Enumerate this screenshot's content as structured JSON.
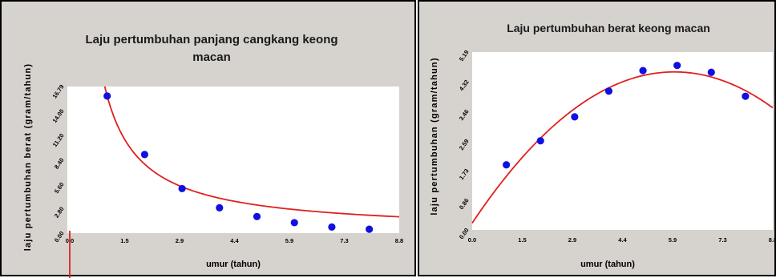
{
  "chart_data": [
    {
      "type": "scatter",
      "title_lines": [
        "Laju pertumbuhan panjang cangkang keong",
        "macan"
      ],
      "xlabel": "umur (tahun)",
      "ylabel": "laju pertumbuhan berat (gram/tahun)",
      "xlim": [
        0,
        8.8
      ],
      "ylim": [
        0,
        16.79
      ],
      "xticks": [
        "0.0",
        "1.5",
        "2.9",
        "4.4",
        "5.9",
        "7.3",
        "8.8"
      ],
      "yticks": [
        "0.00",
        "2.80",
        "5.60",
        "8.40",
        "11.20",
        "14.00",
        "16.79"
      ],
      "points": {
        "x": [
          1,
          2,
          3,
          4,
          5,
          6,
          7,
          8
        ],
        "y": [
          15.7,
          9.0,
          5.1,
          2.9,
          1.9,
          1.2,
          0.7,
          0.45
        ]
      },
      "fit": {
        "form": "a/x + b",
        "a": 15.6,
        "b": 0.1,
        "color": "#e02020"
      },
      "point_color": "#1010e0",
      "grid": false
    },
    {
      "type": "scatter",
      "title_lines": [
        "Laju pertumbuhan berat keong macan"
      ],
      "xlabel": "umur (tahun)",
      "ylabel": "laju pertumbuhan (gram/tahun)",
      "xlim": [
        0,
        8.8
      ],
      "ylim": [
        0,
        5.19
      ],
      "xticks": [
        "0.0",
        "1.5",
        "2.9",
        "4.4",
        "5.9",
        "7.3",
        "8.8"
      ],
      "yticks": [
        "0.00",
        "0.86",
        "1.73",
        "2.59",
        "3.46",
        "4.32",
        "5.19"
      ],
      "points": {
        "x": [
          1,
          2,
          3,
          4,
          5,
          6,
          7,
          8
        ],
        "y": [
          1.9,
          2.6,
          3.3,
          4.05,
          4.65,
          4.8,
          4.6,
          3.9
        ]
      },
      "fit": {
        "form": "a*x^2 + b*x + c",
        "a": -0.126,
        "b": 1.491,
        "c": 0.2,
        "color": "#e02020"
      },
      "point_color": "#1010e0",
      "grid": false
    }
  ]
}
